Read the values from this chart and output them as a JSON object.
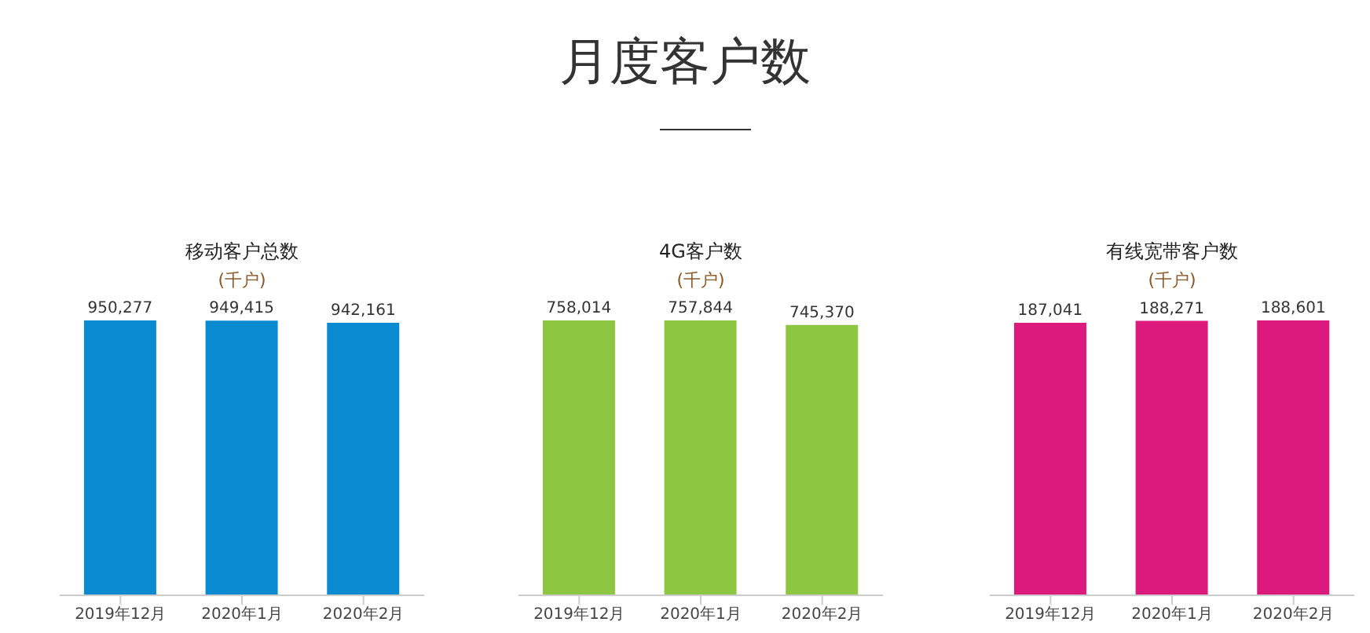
{
  "chart_data": [
    {
      "type": "other",
      "title": "月度客户数"
    },
    {
      "type": "bar",
      "title": "移动客户总数",
      "subtitle": "(千户)",
      "categories": [
        "2019年12月",
        "2020年1月",
        "2020年2月"
      ],
      "values": [
        950277,
        949415,
        942161
      ],
      "value_labels": [
        "950,277",
        "949,415",
        "942,161"
      ],
      "color": "#0a8bd1"
    },
    {
      "type": "bar",
      "title": "4G客户数",
      "subtitle": "(千户)",
      "categories": [
        "2019年12月",
        "2020年1月",
        "2020年2月"
      ],
      "values": [
        758014,
        757844,
        745370
      ],
      "value_labels": [
        "758,014",
        "757,844",
        "745,370"
      ],
      "color": "#8dc641"
    },
    {
      "type": "bar",
      "title": "有线宽带客户数",
      "subtitle": "(千户)",
      "categories": [
        "2019年12月",
        "2020年1月",
        "2020年2月"
      ],
      "values": [
        187041,
        188271,
        188601
      ],
      "value_labels": [
        "187,041",
        "188,271",
        "188,601"
      ],
      "color": "#dc197c"
    }
  ]
}
